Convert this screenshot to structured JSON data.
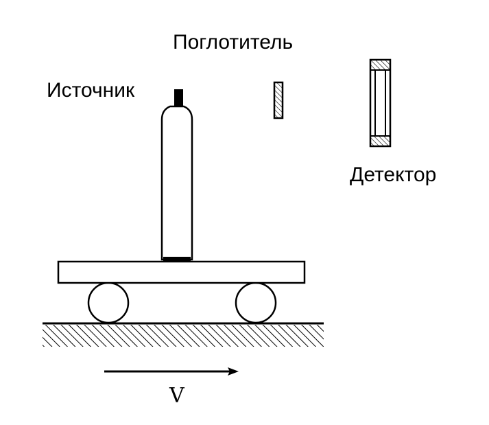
{
  "labels": {
    "absorber": "Поглотитель",
    "source": "Источник",
    "detector": "Детектор",
    "velocity": "V"
  },
  "colors": {
    "stroke": "#000000",
    "background": "#ffffff"
  }
}
